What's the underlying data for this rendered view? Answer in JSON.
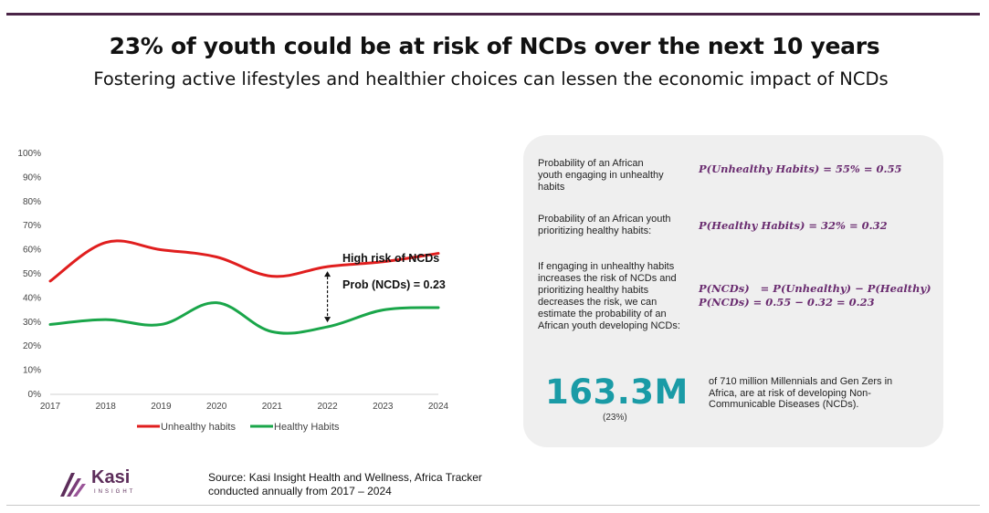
{
  "header": {
    "title": "23% of youth could be at risk of NCDs over the next 10 years",
    "subtitle": "Fostering active lifestyles and healthier choices can lessen the economic impact of NCDs"
  },
  "chart_data": {
    "type": "line",
    "x": [
      "2017",
      "2018",
      "2019",
      "2020",
      "2021",
      "2022",
      "2023",
      "2024"
    ],
    "series": [
      {
        "name": "Unhealthy habits",
        "color": "#e01e1e",
        "values": [
          47,
          63,
          60,
          57,
          49,
          53,
          55,
          58.5
        ]
      },
      {
        "name": "Healthy Habits",
        "color": "#1aa64a",
        "values": [
          29,
          31,
          29,
          38,
          26,
          28,
          35,
          36
        ]
      }
    ],
    "ylim": [
      0,
      100
    ],
    "yticks": [
      "0%",
      "10%",
      "20%",
      "30%",
      "40%",
      "50%",
      "60%",
      "70%",
      "80%",
      "90%",
      "100%"
    ],
    "grid": false,
    "legend": "bottom",
    "annotations": {
      "high_risk": "High risk of NCDs",
      "prob": "Prob (NCDs) = 0.23",
      "arrow_year": "2022",
      "arrow_from": 28,
      "arrow_to": 53
    }
  },
  "panel": {
    "q1_text": "Probability of an African youth  engaging in unhealthy habits",
    "q1_formula": "P(Unhealthy Habits) = 55% = 0.55",
    "q2_text": "Probability of an African youth prioritizing healthy habits:",
    "q2_formula": "P(Healthy Habits) = 32% = 0.32",
    "q3_text": "If engaging in unhealthy habits increases the risk of NCDs and prioritizing healthy habits decreases the risk, we can estimate the probability of an African youth developing NCDs:",
    "q3_formula_line1": "P(NCDs)   = P(Unhealthy) − P(Healthy)",
    "q3_formula_line2": "P(NCDs) = 0.55 − 0.32 = 0.23",
    "big_number": "163.3M",
    "big_percent": "(23%)",
    "big_desc": "of 710 million Millennials and Gen Zers in Africa, are at risk of developing Non-Communicable Diseases (NCDs)."
  },
  "footer": {
    "logo_name": "Kasi",
    "logo_sub": "INSIGHT",
    "source": "Source: Kasi Insight Health and Wellness, Africa Tracker conducted annually from 2017 – 2024"
  },
  "colors": {
    "accent_bar": "#4a2447",
    "teal": "#1a9ba6",
    "formula": "#6a2c70"
  }
}
